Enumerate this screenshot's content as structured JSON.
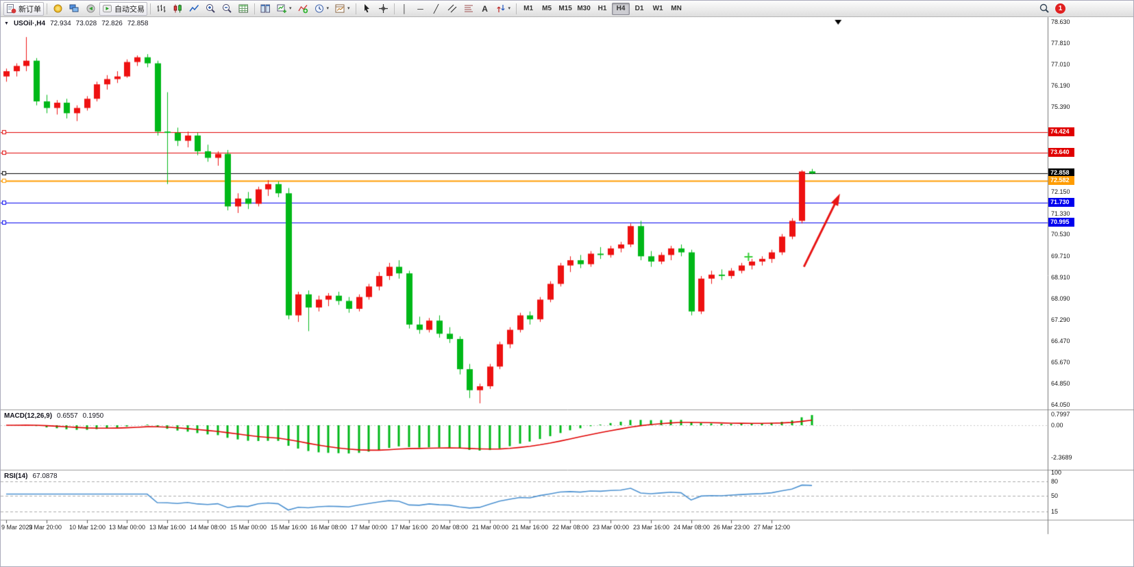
{
  "toolbar": {
    "new_order_label": "新订单",
    "auto_trading_label": "自动交易",
    "notification_count": "1",
    "icons": {
      "vline_glyph": "│",
      "hline_glyph": "─",
      "trendline_glyph": "╱",
      "text_glyph": "A",
      "caret_glyph": "▾"
    },
    "timeframes": {
      "items": [
        "M1",
        "M5",
        "M15",
        "M30",
        "H1",
        "H4",
        "D1",
        "W1",
        "MN"
      ],
      "active": "H4"
    }
  },
  "chart": {
    "title": "USOil·,H4",
    "collapse_glyph": "▼",
    "ohlc": {
      "open": "72.934",
      "high": "73.028",
      "low": "72.826",
      "close": "72.858"
    },
    "price_axis": [
      "78.630",
      "77.810",
      "77.010",
      "76.190",
      "75.390",
      "72.150",
      "71.330",
      "70.530",
      "69.710",
      "68.910",
      "68.090",
      "67.290",
      "66.470",
      "65.670",
      "64.850",
      "64.050"
    ]
  },
  "macd": {
    "title": "MACD(12,26,9)",
    "value_main": "0.6557",
    "value_signal": "0.1950",
    "histogram_color": "#00b818",
    "signal_color": "#e00000",
    "axis": [
      {
        "text": "0.7997",
        "value": 0.7997
      },
      {
        "text": "0.00",
        "value": 0
      },
      {
        "text": "-2.3689",
        "value": -2.3689
      }
    ]
  },
  "rsi": {
    "title": "RSI(14)",
    "value": "67.0878",
    "period": 14,
    "line_color": "#4a90d0",
    "levels": [
      80,
      50,
      15
    ],
    "axis": [
      {
        "text": "100",
        "value": 100
      },
      {
        "text": "80",
        "value": 80
      },
      {
        "text": "50",
        "value": 50
      },
      {
        "text": "15",
        "value": 15
      }
    ]
  },
  "chart_data": {
    "type": "candlestick",
    "symbol": "USOil",
    "timeframe": "H4",
    "bull_color": "#ee1111",
    "bear_color": "#00b818",
    "price_min": 64.05,
    "price_max": 78.63,
    "candles": [
      [
        76.55,
        76.85,
        76.35,
        76.75
      ],
      [
        76.75,
        77.05,
        76.55,
        76.95
      ],
      [
        76.95,
        78.05,
        76.75,
        77.15
      ],
      [
        77.15,
        77.25,
        75.45,
        75.6
      ],
      [
        75.6,
        75.85,
        75.15,
        75.35
      ],
      [
        75.35,
        75.65,
        75.1,
        75.55
      ],
      [
        75.55,
        75.7,
        74.95,
        75.15
      ],
      [
        75.15,
        75.45,
        74.85,
        75.35
      ],
      [
        75.35,
        75.8,
        75.25,
        75.7
      ],
      [
        75.7,
        76.35,
        75.6,
        76.25
      ],
      [
        76.25,
        76.6,
        76.05,
        76.45
      ],
      [
        76.45,
        76.75,
        76.3,
        76.55
      ],
      [
        76.55,
        77.2,
        76.5,
        77.1
      ],
      [
        77.1,
        77.35,
        76.95,
        77.28
      ],
      [
        77.28,
        77.4,
        76.9,
        77.05
      ],
      [
        77.05,
        77.15,
        74.3,
        74.45
      ],
      [
        74.45,
        75.95,
        72.45,
        74.4
      ],
      [
        74.4,
        74.6,
        73.9,
        74.1
      ],
      [
        74.1,
        74.45,
        73.85,
        74.3
      ],
      [
        74.3,
        74.4,
        73.55,
        73.7
      ],
      [
        73.7,
        73.95,
        73.3,
        73.45
      ],
      [
        73.45,
        73.7,
        73.15,
        73.6
      ],
      [
        73.6,
        73.75,
        71.45,
        71.6
      ],
      [
        71.6,
        72.1,
        71.35,
        71.9
      ],
      [
        71.9,
        72.15,
        71.5,
        71.7
      ],
      [
        71.7,
        72.35,
        71.6,
        72.25
      ],
      [
        72.25,
        72.6,
        72.0,
        72.45
      ],
      [
        72.45,
        72.55,
        71.95,
        72.1
      ],
      [
        72.1,
        72.3,
        67.3,
        67.45
      ],
      [
        67.45,
        68.35,
        67.2,
        68.25
      ],
      [
        68.25,
        68.4,
        66.85,
        67.75
      ],
      [
        67.75,
        68.2,
        67.6,
        68.05
      ],
      [
        68.05,
        68.3,
        67.8,
        68.2
      ],
      [
        68.2,
        68.35,
        67.85,
        68.0
      ],
      [
        68.0,
        68.15,
        67.55,
        67.7
      ],
      [
        67.7,
        68.25,
        67.6,
        68.15
      ],
      [
        68.15,
        68.65,
        68.05,
        68.55
      ],
      [
        68.55,
        69.1,
        68.4,
        68.95
      ],
      [
        68.95,
        69.45,
        68.8,
        69.3
      ],
      [
        69.3,
        69.55,
        68.85,
        69.05
      ],
      [
        69.05,
        69.15,
        66.95,
        67.1
      ],
      [
        67.1,
        67.4,
        66.75,
        66.9
      ],
      [
        66.9,
        67.35,
        66.8,
        67.25
      ],
      [
        67.25,
        67.45,
        66.6,
        66.75
      ],
      [
        66.75,
        67.0,
        66.4,
        66.55
      ],
      [
        66.55,
        66.65,
        65.2,
        65.4
      ],
      [
        65.4,
        65.6,
        64.3,
        64.6
      ],
      [
        64.6,
        64.85,
        64.1,
        64.75
      ],
      [
        64.75,
        65.6,
        64.65,
        65.5
      ],
      [
        65.5,
        66.45,
        65.4,
        66.35
      ],
      [
        66.35,
        67.0,
        66.2,
        66.9
      ],
      [
        66.9,
        67.55,
        66.8,
        67.45
      ],
      [
        67.45,
        67.6,
        67.1,
        67.3
      ],
      [
        67.3,
        68.15,
        67.2,
        68.05
      ],
      [
        68.05,
        68.75,
        67.95,
        68.65
      ],
      [
        68.65,
        69.45,
        68.55,
        69.35
      ],
      [
        69.35,
        69.7,
        69.1,
        69.55
      ],
      [
        69.55,
        69.75,
        69.25,
        69.4
      ],
      [
        69.4,
        69.9,
        69.3,
        69.8
      ],
      [
        69.8,
        70.05,
        69.6,
        69.75
      ],
      [
        69.75,
        70.1,
        69.65,
        70.0
      ],
      [
        70.0,
        70.25,
        69.85,
        70.15
      ],
      [
        70.15,
        70.95,
        70.05,
        70.85
      ],
      [
        70.85,
        71.05,
        69.55,
        69.7
      ],
      [
        69.7,
        69.9,
        69.3,
        69.5
      ],
      [
        69.5,
        69.85,
        69.4,
        69.75
      ],
      [
        69.75,
        70.1,
        69.55,
        70.0
      ],
      [
        70.0,
        70.15,
        69.7,
        69.85
      ],
      [
        69.85,
        69.95,
        67.45,
        67.6
      ],
      [
        67.6,
        68.95,
        67.5,
        68.85
      ],
      [
        68.85,
        69.15,
        68.65,
        69.0
      ],
      [
        69.0,
        69.2,
        68.8,
        68.95
      ],
      [
        68.95,
        69.25,
        68.85,
        69.15
      ],
      [
        69.15,
        69.45,
        69.05,
        69.35
      ],
      [
        69.35,
        69.6,
        69.2,
        69.5
      ],
      [
        69.5,
        69.7,
        69.35,
        69.6
      ],
      [
        69.6,
        69.95,
        69.45,
        69.85
      ],
      [
        69.85,
        70.55,
        69.75,
        70.45
      ],
      [
        70.45,
        71.15,
        70.35,
        71.05
      ],
      [
        71.05,
        72.98,
        70.95,
        72.93
      ],
      [
        72.934,
        73.028,
        72.826,
        72.858
      ]
    ],
    "time_labels": [
      {
        "i": 0,
        "t": "9 Mar 2023"
      },
      {
        "i": 4,
        "t": "9 Mar 20:00"
      },
      {
        "i": 8,
        "t": "10 Mar 12:00"
      },
      {
        "i": 12,
        "t": "13 Mar 00:00"
      },
      {
        "i": 16,
        "t": "13 Mar 16:00"
      },
      {
        "i": 20,
        "t": "14 Mar 08:00"
      },
      {
        "i": 24,
        "t": "15 Mar 00:00"
      },
      {
        "i": 28,
        "t": "15 Mar 16:00"
      },
      {
        "i": 32,
        "t": "16 Mar 08:00"
      },
      {
        "i": 36,
        "t": "17 Mar 00:00"
      },
      {
        "i": 40,
        "t": "17 Mar 16:00"
      },
      {
        "i": 44,
        "t": "20 Mar 08:00"
      },
      {
        "i": 48,
        "t": "21 Mar 00:00"
      },
      {
        "i": 52,
        "t": "21 Mar 16:00"
      },
      {
        "i": 56,
        "t": "22 Mar 08:00"
      },
      {
        "i": 60,
        "t": "23 Mar 00:00"
      },
      {
        "i": 64,
        "t": "23 Mar 16:00"
      },
      {
        "i": 68,
        "t": "24 Mar 08:00"
      },
      {
        "i": 72,
        "t": "26 Mar 23:00"
      },
      {
        "i": 76,
        "t": "27 Mar 12:00"
      }
    ],
    "hlines": [
      {
        "price": 74.424,
        "label": "74.424",
        "color": "#e00000",
        "width": 1
      },
      {
        "price": 73.64,
        "label": "73.640",
        "color": "#e00000",
        "width": 1
      },
      {
        "price": 72.858,
        "label": "72.858",
        "color": "#000000",
        "width": 1
      },
      {
        "price": 72.582,
        "label": "72.582",
        "color": "#ff9c00",
        "width": 2
      },
      {
        "price": 71.73,
        "label": "71.730",
        "color": "#0000ee",
        "width": 1
      },
      {
        "price": 70.995,
        "label": "70.995",
        "color": "#0000ee",
        "width": 1
      }
    ],
    "annotations": {
      "trend_arrow": {
        "from_index": 79.2,
        "from_price": 69.3,
        "to_index": 82.6,
        "to_price": 71.95,
        "color": "#e81515"
      },
      "cross_marker": {
        "index": 73.7,
        "price": 69.68,
        "color": "#33cc33"
      },
      "shift_marker_index": 82.6
    }
  }
}
